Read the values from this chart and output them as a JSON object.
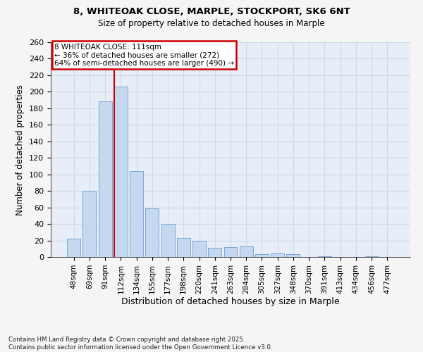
{
  "title_line1": "8, WHITEOAK CLOSE, MARPLE, STOCKPORT, SK6 6NT",
  "title_line2": "Size of property relative to detached houses in Marple",
  "xlabel": "Distribution of detached houses by size in Marple",
  "ylabel": "Number of detached properties",
  "categories": [
    "48sqm",
    "69sqm",
    "91sqm",
    "112sqm",
    "134sqm",
    "155sqm",
    "177sqm",
    "198sqm",
    "220sqm",
    "241sqm",
    "263sqm",
    "284sqm",
    "305sqm",
    "327sqm",
    "348sqm",
    "370sqm",
    "391sqm",
    "413sqm",
    "434sqm",
    "456sqm",
    "477sqm"
  ],
  "values": [
    22,
    80,
    188,
    206,
    104,
    59,
    40,
    23,
    20,
    11,
    12,
    13,
    3,
    4,
    3,
    0,
    1,
    0,
    0,
    1,
    0
  ],
  "bar_color": "#c5d8f0",
  "bar_edge_color": "#6a9fd0",
  "annotation_text_line1": "8 WHITEOAK CLOSE: 111sqm",
  "annotation_text_line2": "← 36% of detached houses are smaller (272)",
  "annotation_text_line3": "64% of semi-detached houses are larger (490) →",
  "annotation_box_color": "#ffffff",
  "annotation_box_edge_color": "#cc0000",
  "red_line_color": "#cc0000",
  "grid_color": "#ccd9ea",
  "background_color": "#e8eef8",
  "ylim": [
    0,
    260
  ],
  "ytick_step": 20,
  "footnote_line1": "Contains HM Land Registry data © Crown copyright and database right 2025.",
  "footnote_line2": "Contains public sector information licensed under the Open Government Licence v3.0."
}
